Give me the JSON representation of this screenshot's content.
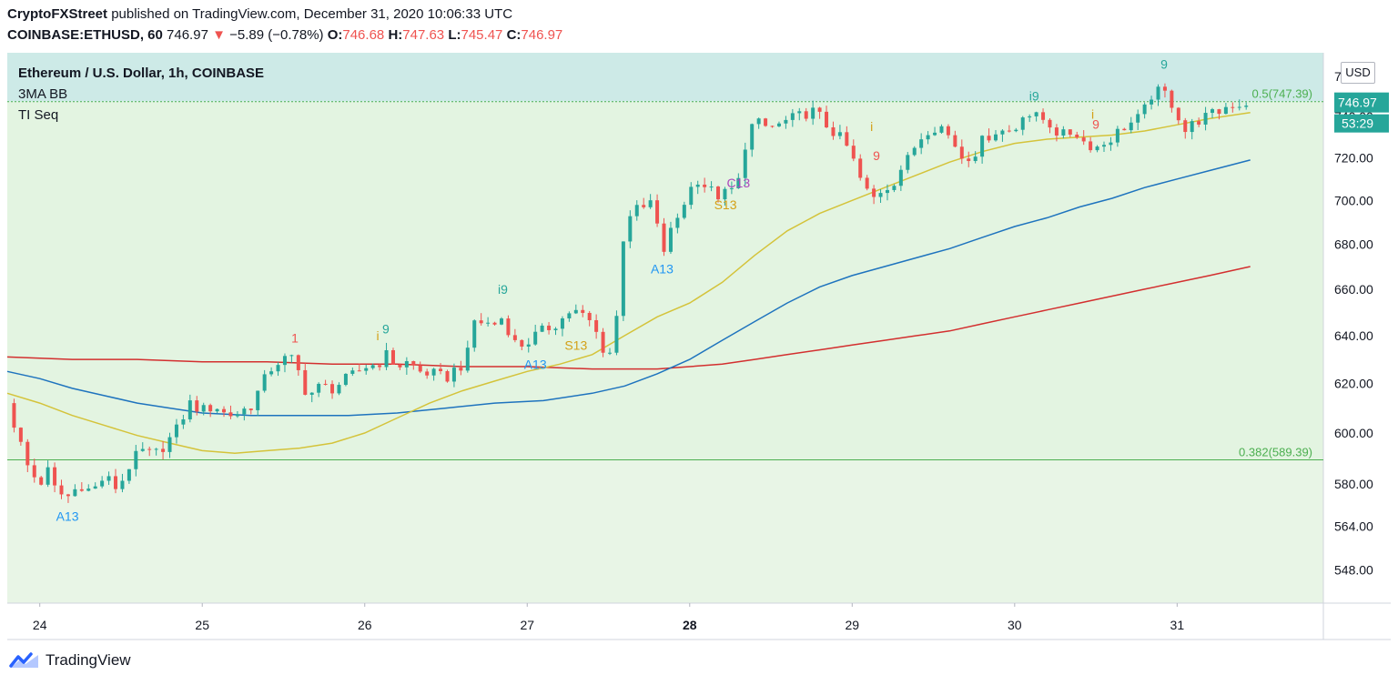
{
  "header": {
    "author": "CryptoFXStreet",
    "published_text": "published on TradingView.com, December 31, 2020 10:06:33 UTC",
    "symbol": "COINBASE:ETHUSD, 60",
    "last": "746.97",
    "change": "−5.89 (−0.78%)",
    "o_label": "O:",
    "o": "746.68",
    "h_label": "H:",
    "h": "747.63",
    "l_label": "L:",
    "l": "745.47",
    "c_label": "C:",
    "c": "746.97"
  },
  "legend": {
    "title": "Ethereum / U.S. Dollar, 1h, COINBASE",
    "indicator1": "3MA BB",
    "indicator2": "TI Seq"
  },
  "price_axis": {
    "currency_button": "USD",
    "last_price_label": "746.97",
    "countdown": "53:29"
  },
  "footer": {
    "brand": "TradingView"
  },
  "colors": {
    "up": "#26a69a",
    "down": "#ef5350",
    "ma_fast": "#d4c33a",
    "ma_mid": "#1e73be",
    "ma_slow": "#d32f2f",
    "upper_zone": "#cdeae7",
    "lower_zone": "#e3f4e1",
    "fib_line": "#4caf50"
  },
  "chart_data": {
    "type": "candlestick",
    "y_scale": "log",
    "ylim": [
      536,
      772
    ],
    "y_ticks": [
      548,
      564,
      580,
      600,
      620,
      640,
      660,
      680,
      700,
      720,
      740,
      760
    ],
    "y_tick_labels": [
      "548.00",
      "564.00",
      "580.00",
      "600.00",
      "620.00",
      "640.00",
      "660.00",
      "680.00",
      "700.00",
      "720.00",
      "740.00",
      "760.00"
    ],
    "x_range": [
      23.8,
      31.9
    ],
    "x_ticks": [
      24,
      25,
      26,
      27,
      28,
      29,
      30,
      31
    ],
    "x_tick_labels": [
      "24",
      "25",
      "26",
      "27",
      "28",
      "29",
      "30",
      "31"
    ],
    "x_tick_bold": [
      "28"
    ],
    "fib_levels": [
      {
        "label": "0.5(747.39)",
        "value": 747.39
      },
      {
        "label": "0.382(589.39)",
        "value": 589.39
      }
    ],
    "anchors": [
      [
        23.8,
        612
      ],
      [
        23.87,
        598
      ],
      [
        23.93,
        586
      ],
      [
        24.0,
        580
      ],
      [
        24.05,
        585
      ],
      [
        24.1,
        577
      ],
      [
        24.17,
        575
      ],
      [
        24.25,
        580
      ],
      [
        24.32,
        577
      ],
      [
        24.4,
        583
      ],
      [
        24.48,
        578
      ],
      [
        24.55,
        587
      ],
      [
        24.62,
        593
      ],
      [
        24.7,
        591
      ],
      [
        24.78,
        596
      ],
      [
        24.85,
        602
      ],
      [
        24.92,
        612
      ],
      [
        25.0,
        609
      ],
      [
        25.08,
        611
      ],
      [
        25.15,
        607
      ],
      [
        25.22,
        608
      ],
      [
        25.3,
        611
      ],
      [
        25.37,
        620
      ],
      [
        25.44,
        628
      ],
      [
        25.5,
        630
      ],
      [
        25.57,
        630
      ],
      [
        25.62,
        618
      ],
      [
        25.67,
        616
      ],
      [
        25.73,
        619
      ],
      [
        25.8,
        618
      ],
      [
        25.87,
        621
      ],
      [
        25.94,
        624
      ],
      [
        26.0,
        627
      ],
      [
        26.08,
        628
      ],
      [
        26.13,
        632
      ],
      [
        26.2,
        627
      ],
      [
        26.27,
        629
      ],
      [
        26.33,
        625
      ],
      [
        26.42,
        624
      ],
      [
        26.5,
        622
      ],
      [
        26.57,
        627
      ],
      [
        26.62,
        628
      ],
      [
        26.68,
        648
      ],
      [
        26.73,
        645
      ],
      [
        26.8,
        645
      ],
      [
        26.85,
        648
      ],
      [
        26.92,
        637
      ],
      [
        26.98,
        636
      ],
      [
        27.05,
        640
      ],
      [
        27.12,
        643
      ],
      [
        27.2,
        646
      ],
      [
        27.27,
        651
      ],
      [
        27.33,
        649
      ],
      [
        27.4,
        645
      ],
      [
        27.45,
        637
      ],
      [
        27.5,
        630
      ],
      [
        27.55,
        648
      ],
      [
        27.6,
        690
      ],
      [
        27.65,
        696
      ],
      [
        27.7,
        695
      ],
      [
        27.77,
        700
      ],
      [
        27.83,
        675
      ],
      [
        27.88,
        685
      ],
      [
        27.93,
        693
      ],
      [
        28.0,
        705
      ],
      [
        28.05,
        710
      ],
      [
        28.12,
        705
      ],
      [
        28.18,
        702
      ],
      [
        28.25,
        704
      ],
      [
        28.3,
        709
      ],
      [
        28.35,
        730
      ],
      [
        28.4,
        738
      ],
      [
        28.45,
        735
      ],
      [
        28.53,
        735
      ],
      [
        28.6,
        738
      ],
      [
        28.67,
        740
      ],
      [
        28.75,
        743
      ],
      [
        28.8,
        740
      ],
      [
        28.85,
        735
      ],
      [
        28.92,
        730
      ],
      [
        28.98,
        724
      ],
      [
        29.05,
        710
      ],
      [
        29.12,
        700
      ],
      [
        29.18,
        705
      ],
      [
        29.25,
        708
      ],
      [
        29.3,
        715
      ],
      [
        29.35,
        720
      ],
      [
        29.4,
        728
      ],
      [
        29.48,
        735
      ],
      [
        29.55,
        735
      ],
      [
        29.62,
        728
      ],
      [
        29.68,
        720
      ],
      [
        29.75,
        722
      ],
      [
        29.8,
        728
      ],
      [
        29.87,
        733
      ],
      [
        29.93,
        733
      ],
      [
        30.0,
        733
      ],
      [
        30.05,
        742
      ],
      [
        30.12,
        740
      ],
      [
        30.2,
        738
      ],
      [
        30.25,
        733
      ],
      [
        30.3,
        731
      ],
      [
        30.37,
        733
      ],
      [
        30.42,
        728
      ],
      [
        30.5,
        725
      ],
      [
        30.55,
        727
      ],
      [
        30.6,
        730
      ],
      [
        30.67,
        735
      ],
      [
        30.72,
        737
      ],
      [
        30.78,
        740
      ],
      [
        30.85,
        752
      ],
      [
        30.92,
        752
      ],
      [
        30.98,
        745
      ],
      [
        31.05,
        733
      ],
      [
        31.12,
        738
      ],
      [
        31.18,
        740
      ],
      [
        31.25,
        742
      ],
      [
        31.32,
        746
      ],
      [
        31.38,
        746
      ],
      [
        31.43,
        747
      ]
    ],
    "ma_fast": [
      [
        23.8,
        616
      ],
      [
        24.0,
        612
      ],
      [
        24.2,
        607
      ],
      [
        24.4,
        603
      ],
      [
        24.6,
        599
      ],
      [
        24.8,
        596
      ],
      [
        25.0,
        593
      ],
      [
        25.2,
        592
      ],
      [
        25.4,
        593
      ],
      [
        25.6,
        594
      ],
      [
        25.8,
        596
      ],
      [
        26.0,
        600
      ],
      [
        26.2,
        606
      ],
      [
        26.4,
        612
      ],
      [
        26.6,
        617
      ],
      [
        26.8,
        621
      ],
      [
        27.0,
        625
      ],
      [
        27.2,
        628
      ],
      [
        27.4,
        632
      ],
      [
        27.6,
        640
      ],
      [
        27.8,
        648
      ],
      [
        28.0,
        654
      ],
      [
        28.2,
        663
      ],
      [
        28.4,
        675
      ],
      [
        28.6,
        686
      ],
      [
        28.8,
        694
      ],
      [
        29.0,
        700
      ],
      [
        29.2,
        706
      ],
      [
        29.4,
        712
      ],
      [
        29.6,
        718
      ],
      [
        29.8,
        723
      ],
      [
        30.0,
        727
      ],
      [
        30.2,
        729
      ],
      [
        30.4,
        730
      ],
      [
        30.6,
        731
      ],
      [
        30.8,
        733
      ],
      [
        31.0,
        736
      ],
      [
        31.2,
        739
      ],
      [
        31.45,
        742
      ]
    ],
    "ma_mid": [
      [
        23.8,
        625
      ],
      [
        24.0,
        622
      ],
      [
        24.2,
        618
      ],
      [
        24.4,
        615
      ],
      [
        24.6,
        612
      ],
      [
        24.8,
        610
      ],
      [
        25.0,
        608
      ],
      [
        25.3,
        607
      ],
      [
        25.6,
        607
      ],
      [
        25.9,
        607
      ],
      [
        26.2,
        608
      ],
      [
        26.5,
        610
      ],
      [
        26.8,
        612
      ],
      [
        27.1,
        613
      ],
      [
        27.4,
        616
      ],
      [
        27.6,
        619
      ],
      [
        27.8,
        624
      ],
      [
        28.0,
        630
      ],
      [
        28.2,
        638
      ],
      [
        28.4,
        646
      ],
      [
        28.6,
        654
      ],
      [
        28.8,
        661
      ],
      [
        29.0,
        666
      ],
      [
        29.2,
        670
      ],
      [
        29.4,
        674
      ],
      [
        29.6,
        678
      ],
      [
        29.8,
        683
      ],
      [
        30.0,
        688
      ],
      [
        30.2,
        692
      ],
      [
        30.4,
        697
      ],
      [
        30.6,
        701
      ],
      [
        30.8,
        706
      ],
      [
        31.0,
        710
      ],
      [
        31.2,
        714
      ],
      [
        31.45,
        719
      ]
    ],
    "ma_slow": [
      [
        23.8,
        631
      ],
      [
        24.2,
        630
      ],
      [
        24.6,
        630
      ],
      [
        25.0,
        629
      ],
      [
        25.4,
        629
      ],
      [
        25.8,
        628
      ],
      [
        26.2,
        628
      ],
      [
        26.6,
        627
      ],
      [
        27.0,
        627
      ],
      [
        27.4,
        626
      ],
      [
        27.6,
        626
      ],
      [
        27.8,
        626
      ],
      [
        28.0,
        627
      ],
      [
        28.2,
        628
      ],
      [
        28.4,
        630
      ],
      [
        28.6,
        632
      ],
      [
        28.8,
        634
      ],
      [
        29.0,
        636
      ],
      [
        29.2,
        638
      ],
      [
        29.4,
        640
      ],
      [
        29.6,
        642
      ],
      [
        29.8,
        645
      ],
      [
        30.0,
        648
      ],
      [
        30.2,
        651
      ],
      [
        30.4,
        654
      ],
      [
        30.6,
        657
      ],
      [
        30.8,
        660
      ],
      [
        31.0,
        663
      ],
      [
        31.2,
        666
      ],
      [
        31.45,
        670
      ]
    ],
    "seq_labels": [
      {
        "text": "A13",
        "x": 24.17,
        "price": 566,
        "color": "#2196f3"
      },
      {
        "text": "9",
        "x": 26.13,
        "price": 641,
        "color": "#26a69a"
      },
      {
        "text": "i",
        "x": 26.08,
        "price": 638,
        "color": "#d4a017"
      },
      {
        "text": "1",
        "x": 25.57,
        "price": 637,
        "color": "#ef5350"
      },
      {
        "text": "A13",
        "x": 27.05,
        "price": 626,
        "color": "#2196f3"
      },
      {
        "text": "i9",
        "x": 26.85,
        "price": 658,
        "color": "#26a69a"
      },
      {
        "text": "S13",
        "x": 27.3,
        "price": 634,
        "color": "#d4a017"
      },
      {
        "text": "A13",
        "x": 27.83,
        "price": 667,
        "color": "#2196f3"
      },
      {
        "text": "S13",
        "x": 28.22,
        "price": 696,
        "color": "#d4a017"
      },
      {
        "text": "C13",
        "x": 28.3,
        "price": 706,
        "color": "#ab47bc"
      },
      {
        "text": "i",
        "x": 29.12,
        "price": 733,
        "color": "#d4a017"
      },
      {
        "text": "9",
        "x": 29.15,
        "price": 719,
        "color": "#ef5350"
      },
      {
        "text": "i9",
        "x": 30.12,
        "price": 748,
        "color": "#26a69a"
      },
      {
        "text": "9",
        "x": 30.5,
        "price": 734,
        "color": "#ef5350"
      },
      {
        "text": "i",
        "x": 30.48,
        "price": 739,
        "color": "#d4a017"
      },
      {
        "text": "9",
        "x": 30.92,
        "price": 764,
        "color": "#26a69a"
      }
    ]
  }
}
